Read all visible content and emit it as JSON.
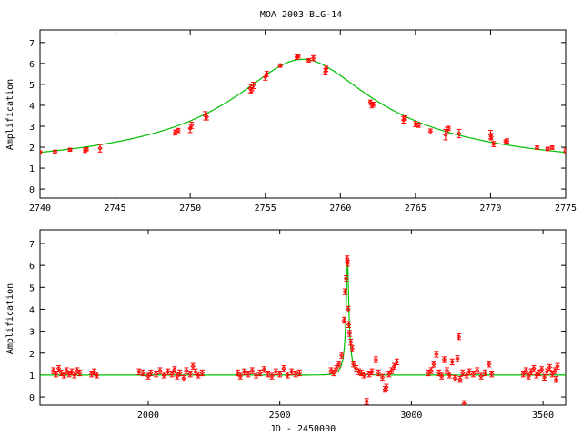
{
  "chart_data": [
    {
      "type": "scatter",
      "title": "MOA 2003-BLG-14",
      "xlabel": "",
      "ylabel": "Amplification",
      "xlim": [
        2740,
        2775
      ],
      "ylim": [
        -0.43,
        7.6
      ],
      "xticks": [
        "2740",
        "2745",
        "2750",
        "2755",
        "2760",
        "2765",
        "2770",
        "2775"
      ],
      "yticks": [
        "0",
        "1",
        "2",
        "3",
        "4",
        "5",
        "6",
        "7"
      ],
      "grid": false,
      "model": {
        "name": "fit",
        "color": "#00c000",
        "t0": 2757.5,
        "u0": 0.163,
        "tE": 27.4,
        "baseline": 1.0
      },
      "series": [
        {
          "name": "data",
          "color": "#ff0000",
          "points": [
            [
              2740.0,
              1.75,
              0.08
            ],
            [
              2741.0,
              1.78,
              0.08
            ],
            [
              2742.0,
              1.88,
              0.07
            ],
            [
              2743.0,
              1.85,
              0.1
            ],
            [
              2743.1,
              1.9,
              0.08
            ],
            [
              2744.0,
              1.95,
              0.18
            ],
            [
              2749.0,
              2.7,
              0.12
            ],
            [
              2749.2,
              2.8,
              0.1
            ],
            [
              2750.0,
              2.9,
              0.2
            ],
            [
              2750.1,
              3.05,
              0.15
            ],
            [
              2751.0,
              3.5,
              0.2
            ],
            [
              2751.1,
              3.45,
              0.15
            ],
            [
              2754.0,
              4.8,
              0.2
            ],
            [
              2754.1,
              4.7,
              0.15
            ],
            [
              2754.2,
              4.95,
              0.15
            ],
            [
              2755.0,
              5.35,
              0.15
            ],
            [
              2755.1,
              5.5,
              0.12
            ],
            [
              2756.0,
              5.9,
              0.08
            ],
            [
              2757.1,
              6.3,
              0.1
            ],
            [
              2757.2,
              6.35,
              0.08
            ],
            [
              2757.9,
              6.15,
              0.08
            ],
            [
              2758.2,
              6.25,
              0.12
            ],
            [
              2759.0,
              5.6,
              0.15
            ],
            [
              2759.05,
              5.75,
              0.12
            ],
            [
              2762.0,
              4.15,
              0.1
            ],
            [
              2762.1,
              4.0,
              0.12
            ],
            [
              2762.2,
              4.05,
              0.1
            ],
            [
              2764.2,
              3.3,
              0.15
            ],
            [
              2764.3,
              3.4,
              0.1
            ],
            [
              2765.0,
              3.1,
              0.12
            ],
            [
              2765.2,
              3.05,
              0.1
            ],
            [
              2766.0,
              2.75,
              0.12
            ],
            [
              2767.0,
              2.6,
              0.25
            ],
            [
              2767.1,
              2.8,
              0.15
            ],
            [
              2767.2,
              2.9,
              0.1
            ],
            [
              2767.9,
              2.65,
              0.2
            ],
            [
              2770.0,
              2.6,
              0.2
            ],
            [
              2770.05,
              2.5,
              0.15
            ],
            [
              2770.2,
              2.15,
              0.12
            ],
            [
              2771.0,
              2.25,
              0.1
            ],
            [
              2771.1,
              2.3,
              0.1
            ],
            [
              2773.1,
              1.98,
              0.08
            ],
            [
              2773.8,
              1.92,
              0.08
            ],
            [
              2774.1,
              1.98,
              0.08
            ],
            [
              2775.0,
              1.82,
              0.12
            ]
          ]
        }
      ]
    },
    {
      "type": "scatter",
      "title": "",
      "xlabel": "JD - 2450000",
      "ylabel": "Amplification",
      "xlim": [
        1589,
        3586
      ],
      "ylim": [
        -0.37,
        7.62
      ],
      "xticks": [
        "2000",
        "2500",
        "3000",
        "3500"
      ],
      "yticks": [
        "0",
        "1",
        "2",
        "3",
        "4",
        "5",
        "6",
        "7"
      ],
      "grid": false,
      "model": {
        "name": "fit",
        "color": "#00c000",
        "t0": 2757.5,
        "u0": 0.163,
        "tE": 27.4,
        "baseline": 1.0
      },
      "series": [
        {
          "name": "data",
          "color": "#ff0000",
          "default_error": 0.13,
          "points": [
            [
              1640,
              1.2
            ],
            [
              1650,
              1.05
            ],
            [
              1660,
              1.3
            ],
            [
              1670,
              1.1
            ],
            [
              1680,
              1.0
            ],
            [
              1690,
              1.2
            ],
            [
              1700,
              1.05
            ],
            [
              1710,
              1.15
            ],
            [
              1720,
              1.0
            ],
            [
              1730,
              1.2
            ],
            [
              1740,
              1.1
            ],
            [
              1785,
              1.05
            ],
            [
              1795,
              1.15
            ],
            [
              1805,
              1.0
            ],
            [
              1965,
              1.15
            ],
            [
              1980,
              1.1
            ],
            [
              2000,
              0.95
            ],
            [
              2010,
              1.1
            ],
            [
              2030,
              1.05
            ],
            [
              2045,
              1.2
            ],
            [
              2060,
              1.0
            ],
            [
              2075,
              1.15
            ],
            [
              2090,
              1.05
            ],
            [
              2100,
              1.25
            ],
            [
              2110,
              0.95
            ],
            [
              2120,
              1.1
            ],
            [
              2135,
              0.85
            ],
            [
              2145,
              1.2
            ],
            [
              2160,
              1.05
            ],
            [
              2170,
              1.4
            ],
            [
              2180,
              1.15
            ],
            [
              2190,
              1.0
            ],
            [
              2205,
              1.1
            ],
            [
              2340,
              1.1
            ],
            [
              2350,
              0.95
            ],
            [
              2365,
              1.15
            ],
            [
              2380,
              1.05
            ],
            [
              2395,
              1.2
            ],
            [
              2410,
              1.0
            ],
            [
              2425,
              1.1
            ],
            [
              2440,
              1.25
            ],
            [
              2455,
              1.05
            ],
            [
              2470,
              0.95
            ],
            [
              2485,
              1.15
            ],
            [
              2500,
              1.05
            ],
            [
              2515,
              1.3
            ],
            [
              2530,
              1.0
            ],
            [
              2545,
              1.15
            ],
            [
              2560,
              1.05
            ],
            [
              2575,
              1.1
            ],
            [
              2695,
              1.2
            ],
            [
              2705,
              1.1
            ],
            [
              2715,
              1.3
            ],
            [
              2725,
              1.5
            ],
            [
              2735,
              1.9
            ],
            [
              2745,
              3.5
            ],
            [
              2748,
              4.8
            ],
            [
              2752,
              5.4
            ],
            [
              2756,
              6.3
            ],
            [
              2758,
              6.1
            ],
            [
              2760,
              4.0
            ],
            [
              2762,
              3.3
            ],
            [
              2765,
              2.9
            ],
            [
              2770,
              2.5
            ],
            [
              2775,
              2.2
            ],
            [
              2780,
              1.5
            ],
            [
              2790,
              1.3
            ],
            [
              2800,
              1.15
            ],
            [
              2810,
              1.1
            ],
            [
              2820,
              1.0
            ],
            [
              2830,
              -0.2
            ],
            [
              2840,
              1.05
            ],
            [
              2850,
              1.15
            ],
            [
              2865,
              1.7
            ],
            [
              2875,
              1.1
            ],
            [
              2890,
              0.9
            ],
            [
              2900,
              0.35
            ],
            [
              2905,
              0.45
            ],
            [
              2915,
              1.05
            ],
            [
              2925,
              1.2
            ],
            [
              2935,
              1.4
            ],
            [
              2945,
              1.6
            ],
            [
              3065,
              1.1
            ],
            [
              3075,
              1.2
            ],
            [
              3085,
              1.5
            ],
            [
              3095,
              1.95
            ],
            [
              3105,
              1.1
            ],
            [
              3115,
              0.95
            ],
            [
              3125,
              1.7
            ],
            [
              3135,
              1.2
            ],
            [
              3145,
              1.0
            ],
            [
              3155,
              1.6
            ],
            [
              3165,
              0.85
            ],
            [
              3175,
              1.75
            ],
            [
              3180,
              2.75
            ],
            [
              3185,
              0.8
            ],
            [
              3195,
              1.1
            ],
            [
              3200,
              -0.3
            ],
            [
              3210,
              1.0
            ],
            [
              3220,
              1.15
            ],
            [
              3235,
              1.05
            ],
            [
              3250,
              1.2
            ],
            [
              3265,
              0.95
            ],
            [
              3280,
              1.1
            ],
            [
              3295,
              1.5
            ],
            [
              3305,
              1.05
            ],
            [
              3425,
              1.05
            ],
            [
              3435,
              1.2
            ],
            [
              3445,
              0.95
            ],
            [
              3455,
              1.15
            ],
            [
              3465,
              1.3
            ],
            [
              3475,
              1.0
            ],
            [
              3485,
              1.1
            ],
            [
              3495,
              1.25
            ],
            [
              3505,
              0.9
            ],
            [
              3515,
              1.15
            ],
            [
              3525,
              1.35
            ],
            [
              3535,
              1.05
            ],
            [
              3545,
              1.2
            ],
            [
              3550,
              0.8
            ],
            [
              3555,
              1.4
            ]
          ]
        }
      ]
    }
  ]
}
